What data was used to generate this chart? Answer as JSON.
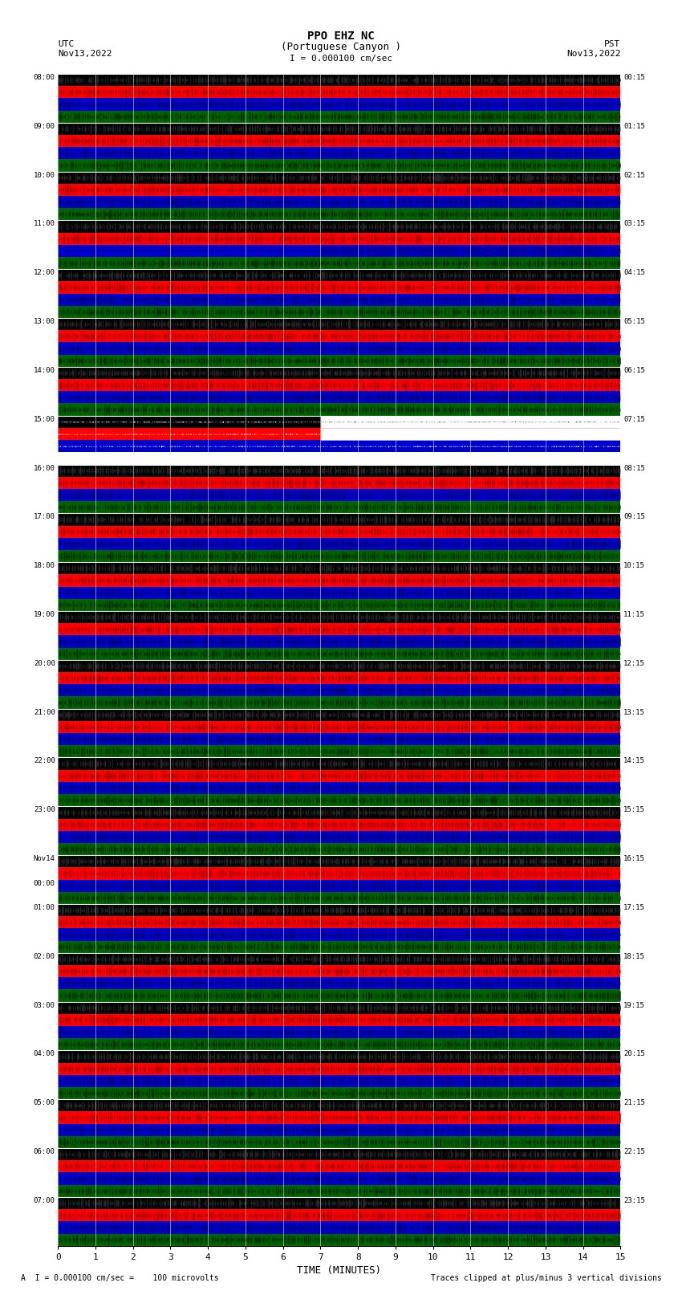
{
  "title_line1": "PPO EHZ NC",
  "title_line2": "(Portuguese Canyon )",
  "title_line3": "I = 0.000100 cm/sec",
  "top_left_label": "UTC\nNov13,2022",
  "top_right_label": "PST\nNov13,2022",
  "bottom_note_left": "A  I = 0.000100 cm/sec =    100 microvolts",
  "bottom_note_right": "Traces clipped at plus/minus 3 vertical divisions",
  "xlabel": "TIME (MINUTES)",
  "xlim": [
    0,
    15
  ],
  "xticks": [
    0,
    1,
    2,
    3,
    4,
    5,
    6,
    7,
    8,
    9,
    10,
    11,
    12,
    13,
    14,
    15
  ],
  "left_times": [
    "08:00",
    "09:00",
    "10:00",
    "11:00",
    "12:00",
    "13:00",
    "14:00",
    "15:00",
    "16:00",
    "17:00",
    "18:00",
    "19:00",
    "20:00",
    "21:00",
    "22:00",
    "23:00",
    "Nov14\n00:00",
    "01:00",
    "02:00",
    "03:00",
    "04:00",
    "05:00",
    "06:00",
    "07:00"
  ],
  "right_times": [
    "00:15",
    "01:15",
    "02:15",
    "03:15",
    "04:15",
    "05:15",
    "06:15",
    "07:15",
    "08:15",
    "09:15",
    "10:15",
    "11:15",
    "12:15",
    "13:15",
    "14:15",
    "15:15",
    "16:15",
    "17:15",
    "18:15",
    "19:15",
    "20:15",
    "21:15",
    "22:15",
    "23:15"
  ],
  "n_rows": 24,
  "sub_bands": 4,
  "band_colors": [
    "#000000",
    "#ff0000",
    "#0000cc",
    "#006400"
  ],
  "bg_color": "#ffffff",
  "seed": 42,
  "n_points": 3000,
  "noise_amp": 0.38,
  "clip_level": 0.42
}
